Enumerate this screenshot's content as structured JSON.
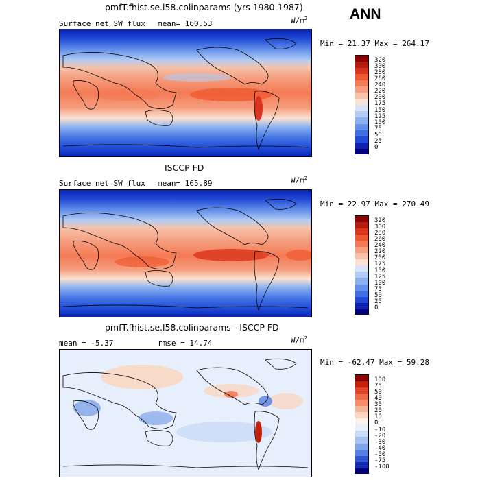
{
  "season": "ANN",
  "panels": [
    {
      "title": "pmfT.fhist.se.l58.colinparams (yrs 1980-1987)",
      "left_label": "Surface net SW flux",
      "mid_label": "mean= 160.53",
      "units_base": "W/m",
      "units_exp": "2",
      "minmax": "Min =  21.37 Max = 264.17",
      "levels": [
        "320",
        "300",
        "280",
        "260",
        "240",
        "220",
        "200",
        "175",
        "150",
        "125",
        "100",
        "75",
        "50",
        "25",
        "0"
      ]
    },
    {
      "title": "ISCCP FD",
      "left_label": "Surface net SW flux",
      "mid_label": "mean= 165.89",
      "units_base": "W/m",
      "units_exp": "2",
      "minmax": "Min =  22.97 Max = 270.49",
      "levels": [
        "320",
        "300",
        "280",
        "260",
        "240",
        "220",
        "200",
        "175",
        "150",
        "125",
        "100",
        "75",
        "50",
        "25",
        "0"
      ]
    },
    {
      "title": "pmfT.fhist.se.l58.colinparams - ISCCP FD",
      "left_label": "mean =  -5.37",
      "mid_label": "rmse =  14.74",
      "units_base": "W/m",
      "units_exp": "2",
      "minmax": "Min = -62.47 Max =  59.28",
      "levels": [
        "100",
        "75",
        "50",
        "40",
        "30",
        "20",
        "10",
        "0",
        "-10",
        "-20",
        "-30",
        "-40",
        "-50",
        "-75",
        "-100"
      ]
    }
  ],
  "colors": {
    "sw_scale": [
      "#8b0000",
      "#b51e0f",
      "#d9341e",
      "#ef5a32",
      "#f47a55",
      "#f59f80",
      "#f6c2aa",
      "#fbe2d2",
      "#d8e4f7",
      "#b2ccf4",
      "#8bb1f0",
      "#6490ea",
      "#3f6fe3",
      "#1f49d6",
      "#0a23b3",
      "#03007a"
    ],
    "diff_scale": [
      "#8b0000",
      "#c3200e",
      "#e2442a",
      "#f06a47",
      "#f48e6b",
      "#f7b597",
      "#fad7c3",
      "#fdf0e6",
      "#e6effb",
      "#c9dbf6",
      "#a6c2f0",
      "#7fa4ea",
      "#5880e2",
      "#3358d5",
      "#132bb0",
      "#03007a"
    ]
  }
}
